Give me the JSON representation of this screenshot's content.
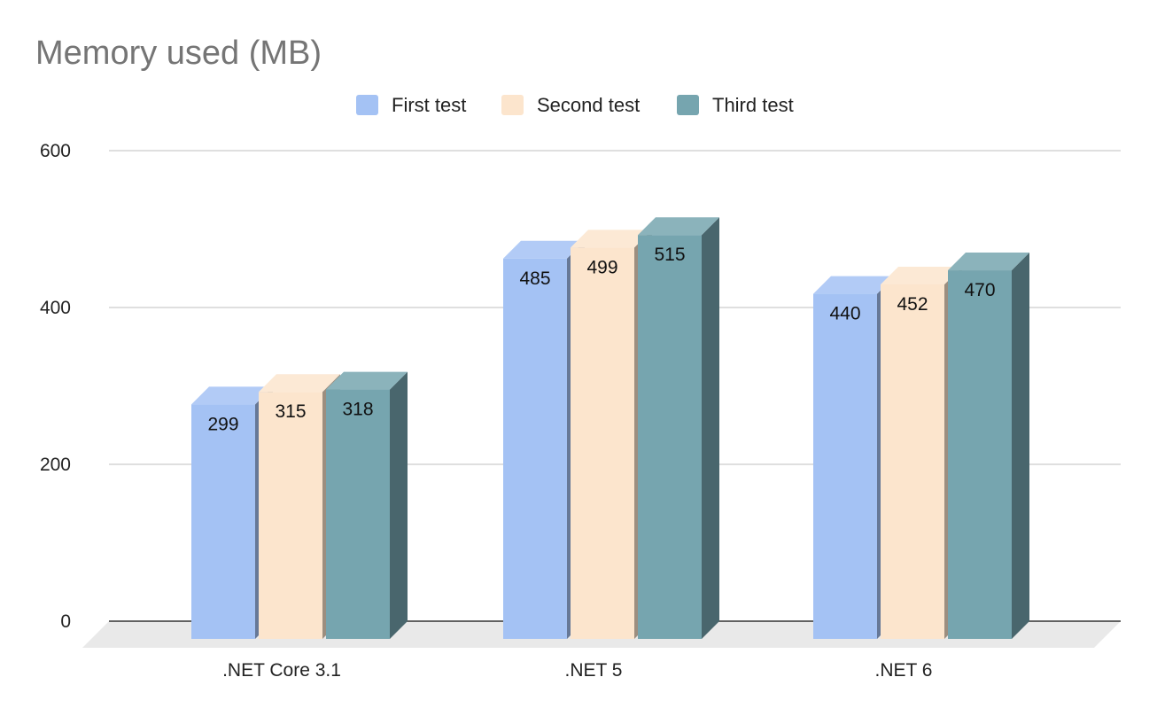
{
  "chart_data": {
    "type": "bar",
    "title": "Memory used (MB)",
    "xlabel": "",
    "ylabel": "",
    "categories": [
      ".NET Core 3.1",
      ".NET 5",
      ".NET 6"
    ],
    "series": [
      {
        "name": "First test",
        "values": [
          299,
          485,
          440
        ],
        "color": "#a4c2f4"
      },
      {
        "name": "Second test",
        "values": [
          315,
          499,
          452
        ],
        "color": "#fce5cd"
      },
      {
        "name": "Third test",
        "values": [
          318,
          515,
          470
        ],
        "color": "#76a5af"
      }
    ],
    "ylim": [
      0,
      600
    ],
    "yticks": [
      0,
      200,
      400,
      600
    ],
    "grid": true,
    "legend_position": "top",
    "style": "3d"
  }
}
